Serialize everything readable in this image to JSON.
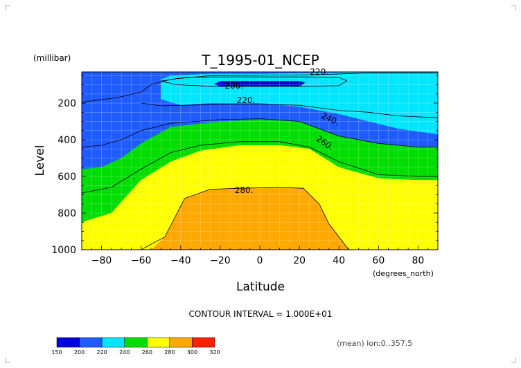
{
  "chart_data": {
    "type": "heatmap",
    "title": "T_1995-01_NCEP",
    "xlabel": "Latitude",
    "x_unit": "(degrees_north)",
    "ylabel": "Level",
    "y_unit": "(millibar)",
    "xlim": [
      -90,
      90
    ],
    "ylim": [
      1000,
      30
    ],
    "xticks": [
      -80,
      -60,
      -40,
      -20,
      0,
      20,
      40,
      60,
      80
    ],
    "yticks": [
      200,
      400,
      600,
      800,
      1000
    ],
    "grid": true,
    "contour_levels": [
      150,
      200,
      220,
      240,
      260,
      280,
      300,
      320
    ],
    "colorbar_colors": [
      "#0000e0",
      "#1f5cff",
      "#00e6ff",
      "#00dd00",
      "#ffff00",
      "#ffa800",
      "#ff2000"
    ],
    "contour_labels": [
      "200.",
      "220.",
      "220.",
      "240.",
      "260.",
      "280."
    ],
    "contour_interval_text": "CONTOUR INTERVAL = 1.000E+01",
    "mean_text": "(mean) lon:0..357.5",
    "isotherm_lines": {
      "t200": [
        [
          -50,
          80
        ],
        [
          -38,
          60
        ],
        [
          -25,
          57
        ],
        [
          0,
          57
        ],
        [
          25,
          57
        ],
        [
          40,
          61
        ],
        [
          44,
          78
        ],
        [
          40,
          105
        ],
        [
          25,
          108
        ],
        [
          0,
          108
        ],
        [
          -25,
          108
        ],
        [
          -42,
          100
        ],
        [
          -50,
          80
        ]
      ],
      "t220_top": [
        [
          -90,
          195
        ],
        [
          -72,
          170
        ],
        [
          -60,
          140
        ],
        [
          -55,
          100
        ],
        [
          -45,
          70
        ],
        [
          -25,
          50
        ],
        [
          0,
          48
        ],
        [
          30,
          45
        ],
        [
          55,
          35
        ],
        [
          70,
          35
        ],
        [
          90,
          35
        ]
      ],
      "t220_hi": [
        [
          -60,
          200
        ],
        [
          -50,
          215
        ],
        [
          -30,
          210
        ],
        [
          0,
          205
        ],
        [
          20,
          212
        ],
        [
          40,
          240
        ],
        [
          55,
          250
        ],
        [
          70,
          270
        ],
        [
          90,
          280
        ]
      ],
      "t240": [
        [
          -90,
          440
        ],
        [
          -80,
          430
        ],
        [
          -70,
          400
        ],
        [
          -60,
          350
        ],
        [
          -45,
          310
        ],
        [
          -20,
          290
        ],
        [
          0,
          285
        ],
        [
          20,
          300
        ],
        [
          40,
          380
        ],
        [
          60,
          420
        ],
        [
          80,
          440
        ],
        [
          90,
          440
        ]
      ],
      "t260": [
        [
          -90,
          690
        ],
        [
          -75,
          660
        ],
        [
          -60,
          560
        ],
        [
          -45,
          470
        ],
        [
          -30,
          430
        ],
        [
          -10,
          410
        ],
        [
          10,
          410
        ],
        [
          25,
          440
        ],
        [
          40,
          520
        ],
        [
          60,
          590
        ],
        [
          80,
          600
        ],
        [
          90,
          600
        ]
      ],
      "t280": [
        [
          -60,
          1000
        ],
        [
          -48,
          930
        ],
        [
          -38,
          720
        ],
        [
          -25,
          670
        ],
        [
          -10,
          665
        ],
        [
          10,
          660
        ],
        [
          22,
          665
        ],
        [
          30,
          750
        ],
        [
          35,
          860
        ],
        [
          45,
          1000
        ]
      ]
    },
    "fill_regions": [
      {
        "level": 220,
        "poly": [
          [
            -90,
            30
          ],
          [
            90,
            30
          ],
          [
            90,
            1000
          ],
          [
            -90,
            1000
          ]
        ]
      },
      {
        "level": 200,
        "poly": [
          [
            -90,
            30
          ],
          [
            90,
            30
          ],
          [
            90,
            860
          ],
          [
            -90,
            860
          ]
        ]
      },
      {
        "level": 220,
        "poly": [
          [
            -50,
            70
          ],
          [
            -45,
            50
          ],
          [
            -25,
            40
          ],
          [
            0,
            40
          ],
          [
            30,
            35
          ],
          [
            60,
            30
          ],
          [
            90,
            30
          ],
          [
            90,
            370
          ],
          [
            70,
            340
          ],
          [
            55,
            300
          ],
          [
            40,
            260
          ],
          [
            20,
            220
          ],
          [
            0,
            200
          ],
          [
            -25,
            200
          ],
          [
            -40,
            210
          ],
          [
            -50,
            180
          ]
        ]
      },
      {
        "level": 150,
        "poly": [
          [
            -20,
            80
          ],
          [
            20,
            80
          ],
          [
            23,
            88
          ],
          [
            20,
            110
          ],
          [
            -20,
            110
          ],
          [
            -23,
            95
          ]
        ]
      },
      {
        "level": 240,
        "poly": [
          [
            -90,
            560
          ],
          [
            -80,
            550
          ],
          [
            -70,
            500
          ],
          [
            -60,
            420
          ],
          [
            -45,
            330
          ],
          [
            -20,
            300
          ],
          [
            0,
            290
          ],
          [
            20,
            300
          ],
          [
            40,
            380
          ],
          [
            60,
            420
          ],
          [
            80,
            440
          ],
          [
            90,
            440
          ],
          [
            90,
            1000
          ],
          [
            -90,
            1000
          ]
        ]
      },
      {
        "level": 260,
        "poly": [
          [
            -90,
            850
          ],
          [
            -75,
            800
          ],
          [
            -60,
            620
          ],
          [
            -45,
            520
          ],
          [
            -30,
            460
          ],
          [
            -10,
            430
          ],
          [
            10,
            430
          ],
          [
            25,
            450
          ],
          [
            40,
            550
          ],
          [
            60,
            610
          ],
          [
            80,
            620
          ],
          [
            90,
            620
          ],
          [
            90,
            1000
          ],
          [
            -90,
            1000
          ]
        ]
      },
      {
        "level": 260,
        "poly": [
          [
            -90,
            850
          ],
          [
            -75,
            800
          ],
          [
            -60,
            620
          ],
          [
            -45,
            520
          ],
          [
            -30,
            460
          ],
          [
            -10,
            430
          ],
          [
            10,
            430
          ],
          [
            25,
            450
          ],
          [
            40,
            550
          ],
          [
            55,
            600
          ],
          [
            58,
            1000
          ],
          [
            -90,
            1000
          ]
        ]
      },
      {
        "level": 280,
        "poly": [
          [
            -55,
            1000
          ],
          [
            -48,
            930
          ],
          [
            -38,
            720
          ],
          [
            -25,
            670
          ],
          [
            -10,
            665
          ],
          [
            10,
            660
          ],
          [
            22,
            665
          ],
          [
            30,
            750
          ],
          [
            35,
            860
          ],
          [
            45,
            1000
          ]
        ]
      }
    ]
  }
}
